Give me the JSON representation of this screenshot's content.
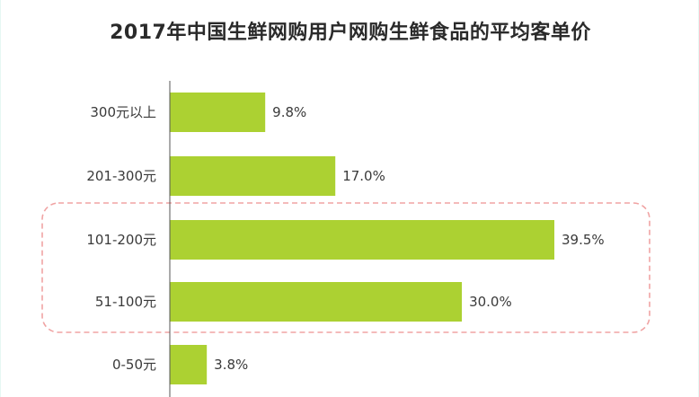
{
  "chart_data": {
    "type": "bar",
    "orientation": "horizontal",
    "title": "2017年中国生鲜网购用户网购生鲜食品的平均客单价",
    "categories": [
      "300元以上",
      "201-300元",
      "101-200元",
      "51-100元",
      "0-50元"
    ],
    "values": [
      9.8,
      17.0,
      39.5,
      30.0,
      3.8
    ],
    "value_labels": [
      "9.8%",
      "17.0%",
      "39.5%",
      "30.0%",
      "3.8%"
    ],
    "unit": "%",
    "xlabel": "",
    "ylabel": "",
    "xlim": [
      0,
      40
    ],
    "grid": false,
    "legend": "none",
    "highlight": {
      "categories": [
        "101-200元",
        "51-100元"
      ],
      "style": "dashed-rounded-box"
    },
    "colors": {
      "bar": "#acd132",
      "axis": "#555555",
      "highlight_box": "#f0a3a3",
      "page_border": "#e6f7f3"
    }
  }
}
